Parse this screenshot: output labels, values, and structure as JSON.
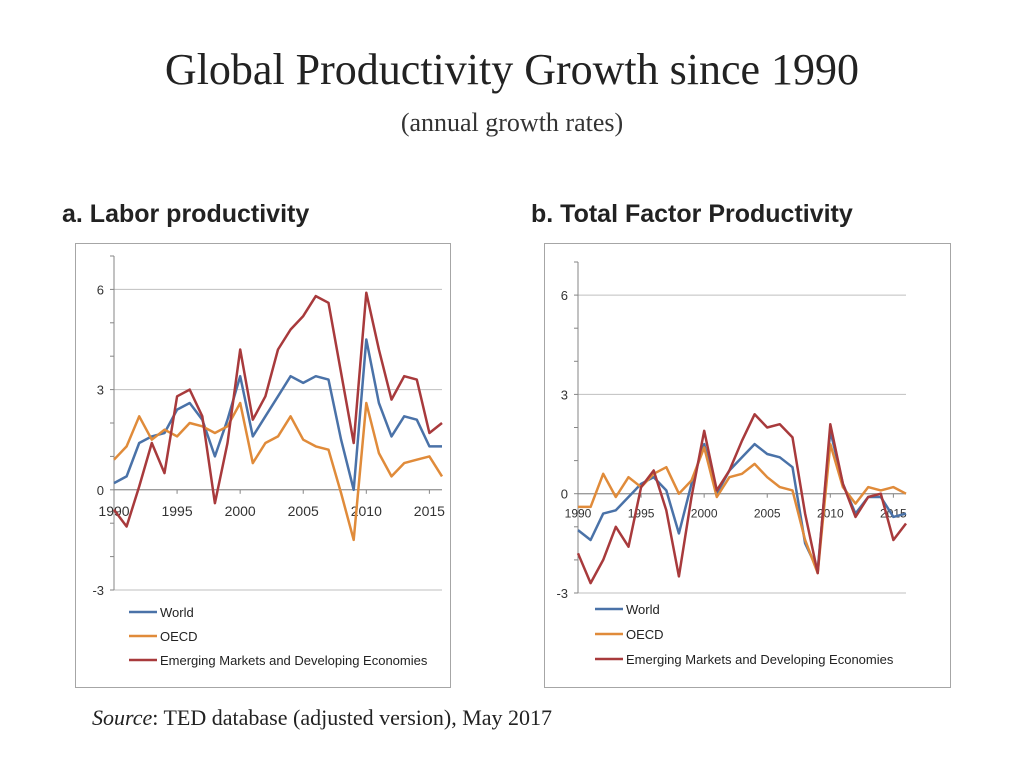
{
  "page": {
    "title": "Global Productivity Growth since 1990",
    "subtitle": "(annual growth rates)",
    "source_label": "Source",
    "source_text": ": TED database (adjusted version), May 2017"
  },
  "colors": {
    "world": "#4a72a8",
    "oecd": "#e08b3a",
    "emde": "#a83a3c",
    "grid": "#bfbfbf",
    "axis": "#868686"
  },
  "chart_data": [
    {
      "type": "line",
      "title": "a. Labor productivity",
      "xlabel": "",
      "ylabel": "",
      "xlim": [
        1990,
        2016
      ],
      "ylim": [
        -3,
        7
      ],
      "yticks": [
        -3,
        0,
        3,
        6
      ],
      "xticks": [
        1990,
        1995,
        2000,
        2005,
        2010,
        2015
      ],
      "legend_position": "bottom-left",
      "x": [
        1990,
        1991,
        1992,
        1993,
        1994,
        1995,
        1996,
        1997,
        1998,
        1999,
        2000,
        2001,
        2002,
        2003,
        2004,
        2005,
        2006,
        2007,
        2008,
        2009,
        2010,
        2011,
        2012,
        2013,
        2014,
        2015,
        2016
      ],
      "series": [
        {
          "name": "World",
          "color_key": "world",
          "values": [
            0.2,
            0.4,
            1.4,
            1.6,
            1.7,
            2.4,
            2.6,
            2.1,
            1.0,
            2.1,
            3.4,
            1.6,
            2.2,
            2.8,
            3.4,
            3.2,
            3.4,
            3.3,
            1.5,
            0.0,
            4.5,
            2.6,
            1.6,
            2.2,
            2.1,
            1.3,
            1.3
          ]
        },
        {
          "name": "OECD",
          "color_key": "oecd",
          "values": [
            0.9,
            1.3,
            2.2,
            1.5,
            1.8,
            1.6,
            2.0,
            1.9,
            1.7,
            1.9,
            2.6,
            0.8,
            1.4,
            1.6,
            2.2,
            1.5,
            1.3,
            1.2,
            -0.1,
            -1.5,
            2.6,
            1.1,
            0.4,
            0.8,
            0.9,
            1.0,
            0.4
          ]
        },
        {
          "name": "Emerging Markets and Developing Economies",
          "color_key": "emde",
          "values": [
            -0.6,
            -1.1,
            0.1,
            1.4,
            0.5,
            2.8,
            3.0,
            2.2,
            -0.4,
            1.4,
            4.2,
            2.1,
            2.8,
            4.2,
            4.8,
            5.2,
            5.8,
            5.6,
            3.5,
            1.4,
            5.9,
            4.2,
            2.7,
            3.4,
            3.3,
            1.7,
            2.0
          ]
        }
      ]
    },
    {
      "type": "line",
      "title": "b. Total Factor Productivity",
      "xlabel": "",
      "ylabel": "",
      "xlim": [
        1990,
        2016
      ],
      "ylim": [
        -3,
        7
      ],
      "yticks": [
        -3,
        0,
        3,
        6
      ],
      "xticks": [
        1990,
        1995,
        2000,
        2005,
        2010,
        2015
      ],
      "legend_position": "bottom-left",
      "x": [
        1990,
        1991,
        1992,
        1993,
        1994,
        1995,
        1996,
        1997,
        1998,
        1999,
        2000,
        2001,
        2002,
        2003,
        2004,
        2005,
        2006,
        2007,
        2008,
        2009,
        2010,
        2011,
        2012,
        2013,
        2014,
        2015,
        2016
      ],
      "series": [
        {
          "name": "World",
          "color_key": "world",
          "values": [
            -1.1,
            -1.4,
            -0.6,
            -0.5,
            -0.1,
            0.3,
            0.5,
            0.1,
            -1.2,
            0.3,
            1.5,
            0.0,
            0.7,
            1.1,
            1.5,
            1.2,
            1.1,
            0.8,
            -1.5,
            -2.3,
            1.9,
            0.3,
            -0.6,
            -0.1,
            -0.1,
            -0.7,
            -0.6
          ]
        },
        {
          "name": "OECD",
          "color_key": "oecd",
          "values": [
            -0.4,
            -0.4,
            0.6,
            -0.1,
            0.5,
            0.2,
            0.6,
            0.8,
            0.0,
            0.4,
            1.4,
            -0.1,
            0.5,
            0.6,
            0.9,
            0.5,
            0.2,
            0.1,
            -1.4,
            -2.4,
            1.5,
            0.2,
            -0.3,
            0.2,
            0.1,
            0.2,
            0.0
          ]
        },
        {
          "name": "Emerging Markets and Developing Economies",
          "color_key": "emde",
          "values": [
            -1.8,
            -2.7,
            -2.0,
            -1.0,
            -1.6,
            0.2,
            0.7,
            -0.5,
            -2.5,
            -0.1,
            1.9,
            0.1,
            0.7,
            1.6,
            2.4,
            2.0,
            2.1,
            1.7,
            -0.6,
            -2.4,
            2.1,
            0.3,
            -0.7,
            -0.1,
            0.0,
            -1.4,
            -0.9
          ]
        }
      ]
    }
  ]
}
